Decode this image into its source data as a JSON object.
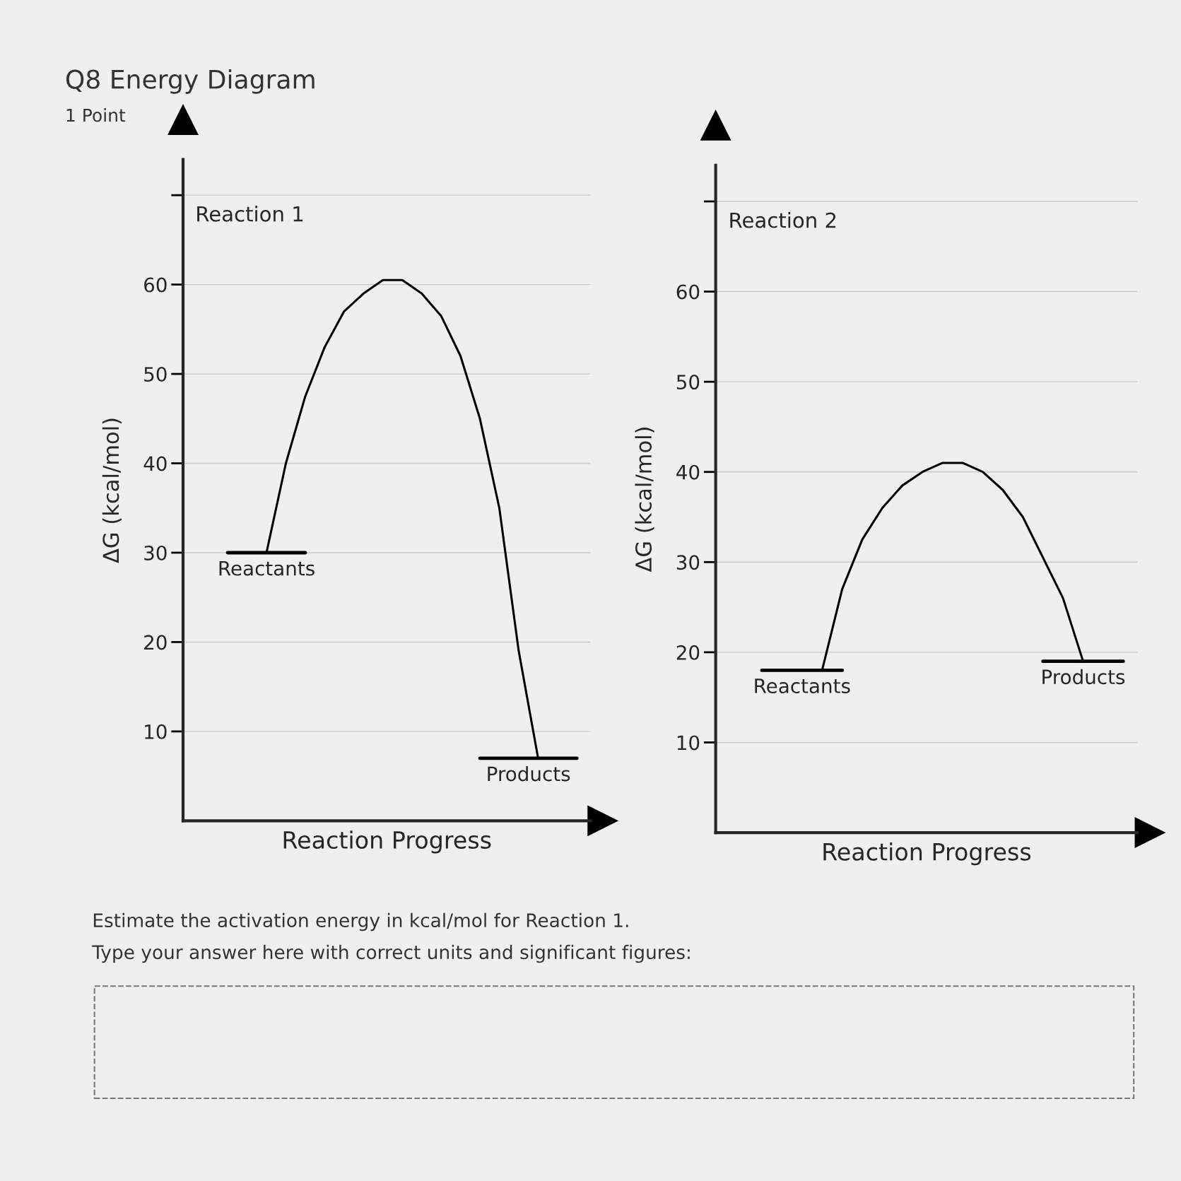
{
  "chart_data": [
    {
      "type": "line",
      "title": "Reaction 1",
      "ylabel": "ΔG (kcal/mol)",
      "xlabel": "Reaction Progress",
      "categories": [
        null,
        null,
        null,
        null,
        null,
        null,
        null,
        null,
        null,
        null,
        null,
        null,
        null,
        null,
        null,
        null,
        null,
        null,
        null,
        null,
        null
      ],
      "series": [
        {
          "color": "#000000",
          "values": [
            null,
            null,
            30,
            30,
            30,
            30,
            30,
            null,
            null,
            null,
            null,
            null,
            null,
            null,
            null,
            null,
            null,
            null,
            null,
            null,
            null
          ]
        },
        {
          "color": "#000000",
          "values": [
            null,
            null,
            null,
            null,
            30,
            40,
            47.5,
            53,
            57,
            59,
            60.5,
            60.5,
            59,
            56.5,
            52,
            45,
            35,
            19,
            7,
            null,
            null
          ]
        },
        {
          "color": "#000000",
          "values": [
            null,
            null,
            null,
            null,
            null,
            null,
            null,
            null,
            null,
            null,
            null,
            null,
            null,
            null,
            null,
            7,
            7,
            7,
            7,
            7,
            7
          ]
        }
      ],
      "ylim": [
        0,
        74
      ],
      "yticks": [
        10,
        20,
        30,
        40,
        50,
        60,
        {
          "value": 70,
          "label": null
        }
      ],
      "grid": "y",
      "tick_labels": "y",
      "annotations": [
        "Q8 Energy Diagram",
        "1 Point",
        "Estimate the activation energy in kcal/mol for Reaction 1.",
        "Type your answer here with correct units and significant figures:",
        {
          "text": "Reactants",
          "y": 30
        },
        {
          "text": "Products",
          "y": 7
        }
      ]
    },
    {
      "type": "line",
      "title": "Reaction 2",
      "ylabel": "ΔG (kcal/mol)",
      "xlabel": "Reaction Progress",
      "categories": [
        null,
        null,
        null,
        null,
        null,
        null,
        null,
        null,
        null,
        null,
        null,
        null,
        null,
        null,
        null,
        null,
        null,
        null,
        null,
        null,
        null
      ],
      "series": [
        {
          "color": "#000000",
          "values": [
            null,
            null,
            18,
            18,
            18,
            18,
            18,
            null,
            null,
            null,
            null,
            null,
            null,
            null,
            null,
            null,
            null,
            null,
            null,
            null,
            null
          ]
        },
        {
          "color": "#000000",
          "values": [
            null,
            null,
            null,
            null,
            null,
            18,
            27,
            32.5,
            36,
            38.5,
            40,
            41,
            41,
            40,
            38,
            35,
            30.5,
            26,
            19,
            null,
            null
          ]
        },
        {
          "color": "#000000",
          "values": [
            null,
            null,
            null,
            null,
            null,
            null,
            null,
            null,
            null,
            null,
            null,
            null,
            null,
            null,
            null,
            null,
            19,
            19,
            19,
            19,
            19
          ]
        }
      ],
      "ylim": [
        0,
        74
      ],
      "yticks": [
        10,
        20,
        30,
        40,
        50,
        60,
        {
          "value": 70,
          "label": null
        }
      ],
      "grid": "y",
      "tick_labels": "y",
      "annotations": [
        {
          "text": "Reactants",
          "y": 18
        },
        {
          "text": "Products",
          "y": 19
        }
      ]
    }
  ]
}
